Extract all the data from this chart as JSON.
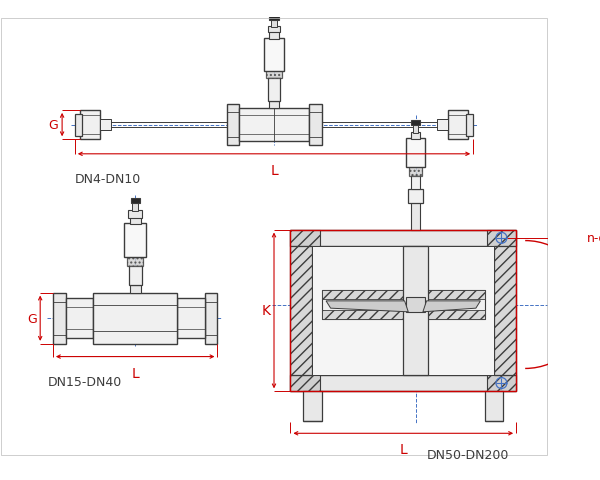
{
  "bg_color": "#ffffff",
  "line_color": "#3c3c3c",
  "dim_red": "#cc0000",
  "dim_blue": "#4472c4",
  "figsize": [
    6.0,
    4.81
  ],
  "dpi": 100,
  "label_dn4": "DN4-DN10",
  "label_dn15": "DN15-DN40",
  "label_dn50": "DN50-DN200",
  "label_L": "L",
  "label_G": "G",
  "label_K": "K",
  "label_nd": "n-d"
}
